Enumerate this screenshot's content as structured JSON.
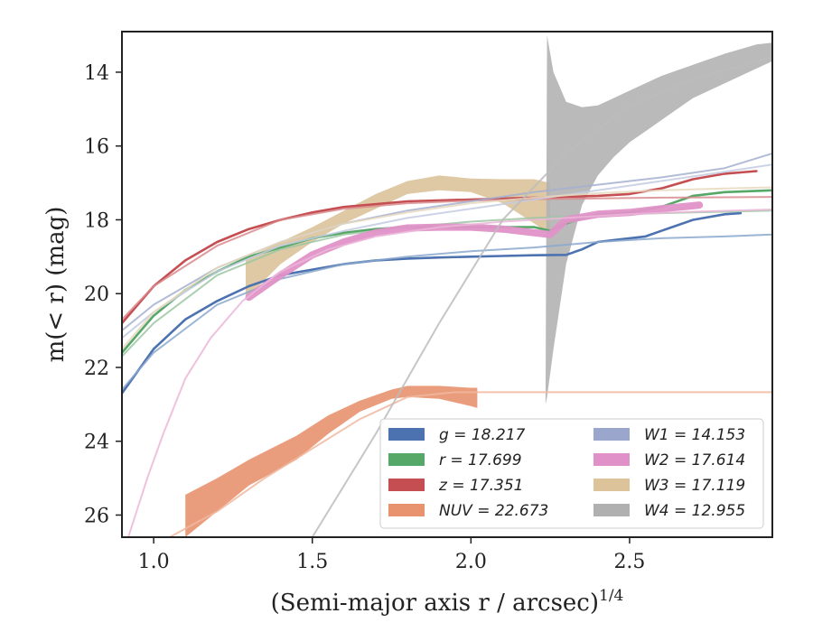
{
  "chart_data": {
    "type": "line",
    "xlabel": "(Semi-major axis r / arcsec)",
    "xlabel_sup": "1/4",
    "ylabel": "m(< r) (mag)",
    "xlim": [
      0.9,
      2.95
    ],
    "ylim": [
      26.6,
      12.9
    ],
    "y_inverted": true,
    "grid": false,
    "legend_position": "lower-right",
    "x_ticks": [
      1.0,
      1.5,
      2.0,
      2.5
    ],
    "x_tick_labels": [
      "1.0",
      "1.5",
      "2.0",
      "2.5"
    ],
    "y_ticks": [
      14,
      16,
      18,
      20,
      22,
      24,
      26
    ],
    "y_tick_labels": [
      "14",
      "16",
      "18",
      "20",
      "22",
      "24",
      "26"
    ],
    "legend": [
      {
        "label": "g = 18.217",
        "color": "#4c72b0"
      },
      {
        "label": "r = 17.699",
        "color": "#55a868"
      },
      {
        "label": "z = 17.351",
        "color": "#c44e52"
      },
      {
        "label": "NUV = 22.673",
        "color": "#e8926e"
      },
      {
        "label": "W1 = 14.153",
        "color": "#9aa6cc"
      },
      {
        "label": "W2 = 17.614",
        "color": "#e092c8"
      },
      {
        "label": "W3 = 17.119",
        "color": "#dcc39a"
      },
      {
        "label": "W4 = 12.955",
        "color": "#b0b0b0"
      }
    ],
    "series": [
      {
        "name": "g",
        "color": "#4c72b0",
        "x": [
          0.9,
          1.0,
          1.1,
          1.2,
          1.3,
          1.4,
          1.5,
          1.6,
          1.7,
          1.8,
          1.9,
          2.0,
          2.1,
          2.2,
          2.3,
          2.35,
          2.4,
          2.45,
          2.55,
          2.6,
          2.65,
          2.7,
          2.8,
          2.85
        ],
        "y": [
          22.7,
          21.5,
          20.7,
          20.2,
          19.8,
          19.5,
          19.35,
          19.2,
          19.1,
          19.05,
          19.02,
          19.0,
          18.98,
          18.96,
          18.95,
          18.8,
          18.6,
          18.55,
          18.45,
          18.3,
          18.15,
          18.0,
          17.85,
          17.82
        ]
      },
      {
        "name": "g model",
        "color": "#8aa8cc",
        "style": "model",
        "x": [
          0.9,
          1.0,
          1.2,
          1.4,
          1.6,
          1.8,
          2.0,
          2.2,
          2.4,
          2.6,
          2.8,
          2.95
        ],
        "y": [
          22.6,
          21.6,
          20.3,
          19.6,
          19.2,
          19.0,
          18.85,
          18.75,
          18.6,
          18.5,
          18.45,
          18.4
        ]
      },
      {
        "name": "r",
        "color": "#55a868",
        "x": [
          0.9,
          1.0,
          1.1,
          1.2,
          1.3,
          1.4,
          1.5,
          1.6,
          1.7,
          1.8,
          1.9,
          2.0,
          2.1,
          2.2,
          2.25,
          2.3,
          2.35,
          2.4,
          2.5,
          2.6,
          2.7,
          2.8,
          2.95
        ],
        "y": [
          21.6,
          20.6,
          19.9,
          19.4,
          19.0,
          18.75,
          18.5,
          18.35,
          18.25,
          18.2,
          18.2,
          18.2,
          18.2,
          18.2,
          18.3,
          18.1,
          17.95,
          17.85,
          17.8,
          17.65,
          17.35,
          17.25,
          17.2
        ]
      },
      {
        "name": "r model",
        "color": "#9cc7a2",
        "style": "model",
        "x": [
          0.9,
          1.0,
          1.2,
          1.4,
          1.6,
          1.8,
          2.0,
          2.2,
          2.4,
          2.6,
          2.8,
          2.95
        ],
        "y": [
          21.7,
          20.8,
          19.5,
          18.8,
          18.4,
          18.2,
          18.05,
          17.95,
          17.87,
          17.82,
          17.78,
          17.75
        ]
      },
      {
        "name": "z",
        "color": "#c44e52",
        "x": [
          0.9,
          1.0,
          1.1,
          1.2,
          1.3,
          1.4,
          1.5,
          1.6,
          1.8,
          2.0,
          2.2,
          2.4,
          2.5,
          2.6,
          2.7,
          2.8,
          2.9
        ],
        "y": [
          20.8,
          19.8,
          19.1,
          18.6,
          18.25,
          18.0,
          17.8,
          17.65,
          17.5,
          17.45,
          17.4,
          17.35,
          17.3,
          17.15,
          16.9,
          16.75,
          16.68
        ]
      },
      {
        "name": "z model",
        "color": "#d98a8c",
        "style": "model",
        "x": [
          0.9,
          1.0,
          1.2,
          1.4,
          1.6,
          1.8,
          2.0,
          2.2,
          2.4,
          2.6,
          2.8,
          2.95
        ],
        "y": [
          20.7,
          19.8,
          18.7,
          18.0,
          17.7,
          17.55,
          17.48,
          17.44,
          17.42,
          17.4,
          17.39,
          17.38
        ]
      },
      {
        "name": "W1",
        "color": "#a4b0d0",
        "style": "model",
        "x": [
          0.9,
          1.0,
          1.2,
          1.4,
          1.6,
          1.8,
          2.0,
          2.2,
          2.4,
          2.6,
          2.8,
          2.95
        ],
        "y": [
          21.0,
          20.3,
          19.3,
          18.6,
          18.1,
          17.75,
          17.5,
          17.25,
          17.05,
          16.85,
          16.6,
          16.2
        ]
      },
      {
        "name": "W1 model",
        "color": "#c4cbe2",
        "style": "model",
        "x": [
          0.9,
          1.0,
          1.2,
          1.4,
          1.6,
          1.8,
          2.0,
          2.2,
          2.4,
          2.6,
          2.8,
          2.95
        ],
        "y": [
          21.2,
          20.5,
          19.4,
          18.7,
          18.3,
          17.95,
          17.7,
          17.45,
          17.2,
          16.95,
          16.7,
          16.5
        ]
      },
      {
        "name": "W2",
        "color": "#e092c8",
        "style": "thick",
        "x": [
          1.3,
          1.4,
          1.5,
          1.6,
          1.7,
          1.8,
          1.9,
          2.0,
          2.1,
          2.2,
          2.25,
          2.3,
          2.4,
          2.5,
          2.6,
          2.7,
          2.72
        ],
        "y": [
          20.1,
          19.5,
          18.95,
          18.6,
          18.35,
          18.22,
          18.2,
          18.2,
          18.25,
          18.35,
          18.4,
          18.0,
          17.85,
          17.8,
          17.7,
          17.62,
          17.6
        ]
      },
      {
        "name": "W2 model",
        "color": "#ebb6d9",
        "style": "model",
        "x": [
          0.92,
          0.98,
          1.03,
          1.1,
          1.18,
          1.28,
          1.4,
          1.55,
          1.7,
          1.9,
          2.1,
          2.3,
          2.5,
          2.7,
          2.95
        ],
        "y": [
          26.6,
          25.0,
          23.8,
          22.3,
          21.2,
          20.2,
          19.4,
          18.8,
          18.45,
          18.2,
          18.05,
          17.95,
          17.85,
          17.78,
          17.72
        ]
      },
      {
        "name": "W3 model",
        "color": "#e8d8bd",
        "style": "model",
        "x": [
          0.9,
          1.0,
          1.2,
          1.4,
          1.6,
          1.8,
          2.0,
          2.2,
          2.4,
          2.6,
          2.8,
          2.95
        ],
        "y": [
          21.5,
          20.5,
          19.3,
          18.6,
          18.1,
          17.8,
          17.55,
          17.4,
          17.28,
          17.2,
          17.15,
          17.12
        ]
      },
      {
        "name": "NUV model",
        "color": "#f0b8a0",
        "style": "model",
        "x": [
          1.05,
          1.2,
          1.35,
          1.5,
          1.65,
          1.8,
          1.95,
          2.02,
          2.95
        ],
        "y": [
          26.6,
          25.9,
          25.0,
          24.2,
          23.4,
          22.8,
          22.67,
          22.67,
          22.67
        ]
      },
      {
        "name": "W4 model",
        "color": "#bcbcbc",
        "style": "model",
        "x": [
          1.5,
          1.7,
          1.9,
          2.1,
          2.3,
          2.5,
          2.7,
          2.9,
          2.95
        ],
        "y": [
          26.6,
          23.8,
          20.8,
          18.0,
          16.2,
          14.9,
          14.2,
          13.7,
          13.6
        ]
      }
    ],
    "bands": [
      {
        "name": "W3",
        "color": "#dcc39a",
        "x": [
          1.29,
          1.4,
          1.5,
          1.6,
          1.7,
          1.8,
          1.9,
          2.0,
          2.1,
          2.2,
          2.25
        ],
        "y_low": [
          19.05,
          18.6,
          18.2,
          17.75,
          17.3,
          16.95,
          16.8,
          16.88,
          16.9,
          16.9,
          17.0
        ],
        "y_high": [
          20.15,
          19.2,
          18.6,
          18.1,
          17.7,
          17.3,
          17.2,
          17.25,
          17.55,
          18.1,
          18.4
        ]
      },
      {
        "name": "NUV",
        "color": "#e8926e",
        "x": [
          1.1,
          1.2,
          1.3,
          1.45,
          1.55,
          1.65,
          1.75,
          1.8,
          1.9,
          2.0,
          2.02
        ],
        "y_low": [
          25.45,
          25.0,
          24.5,
          23.85,
          23.3,
          22.9,
          22.6,
          22.5,
          22.5,
          22.55,
          22.55
        ],
        "y_high": [
          26.6,
          25.9,
          25.2,
          24.5,
          23.8,
          23.2,
          22.85,
          22.8,
          22.85,
          23.05,
          23.1
        ]
      },
      {
        "name": "W4",
        "color": "#b3b3b3",
        "x": [
          2.235,
          2.24,
          2.26,
          2.3,
          2.35,
          2.4,
          2.45,
          2.5,
          2.6,
          2.7,
          2.8,
          2.9,
          2.95
        ],
        "y_low": [
          23.0,
          13.0,
          14.0,
          14.8,
          14.95,
          14.9,
          14.7,
          14.5,
          14.1,
          13.8,
          13.5,
          13.25,
          13.2
        ],
        "y_high": [
          23.0,
          22.8,
          21.5,
          19.2,
          17.6,
          16.8,
          16.3,
          15.9,
          15.3,
          14.7,
          14.3,
          13.9,
          13.7
        ]
      }
    ]
  }
}
